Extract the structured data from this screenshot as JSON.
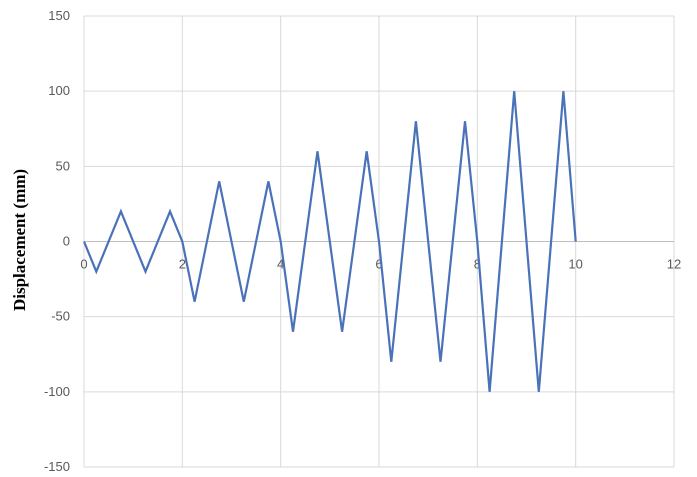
{
  "chart_data": {
    "type": "line",
    "ylabel": "Displacement (mm)",
    "xlabel": "",
    "title": "",
    "xlim": [
      0,
      12
    ],
    "ylim": [
      -150,
      150
    ],
    "x_ticks": [
      0,
      2,
      4,
      6,
      8,
      10,
      12
    ],
    "y_ticks": [
      150,
      100,
      50,
      0,
      -50,
      -100,
      -150
    ],
    "grid": true,
    "legend": "none",
    "series": [
      {
        "color": "#4a72b8",
        "x": [
          0,
          0.25,
          0.75,
          1.25,
          1.75,
          2.0,
          2.25,
          2.75,
          3.25,
          3.75,
          4.0,
          4.25,
          4.75,
          5.25,
          5.75,
          6.0,
          6.25,
          6.75,
          7.25,
          7.75,
          8.0,
          8.25,
          8.75,
          9.25,
          9.75,
          10.0
        ],
        "y": [
          0,
          -20,
          20,
          -20,
          20,
          0,
          -40,
          40,
          -40,
          40,
          0,
          -60,
          60,
          -60,
          60,
          0,
          -80,
          80,
          -80,
          80,
          0,
          -100,
          100,
          -100,
          100,
          0
        ]
      }
    ]
  }
}
